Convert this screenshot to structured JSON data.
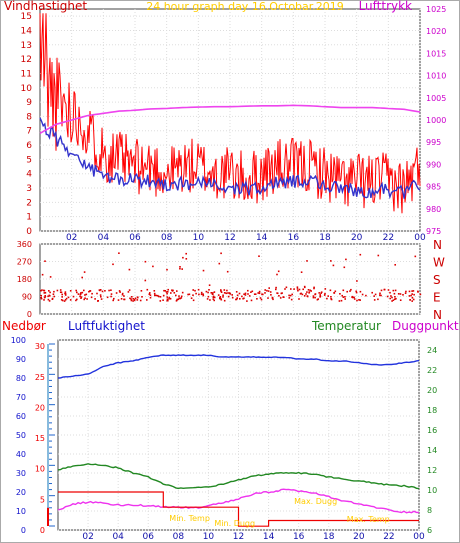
{
  "chart_data": [
    {
      "type": "line",
      "title": "24 hour graph day  16.Octobar.2019",
      "y_left_label": "Vindhastighet",
      "y_right_label": "Lufttrykk",
      "y_left_ticks": [
        "0",
        "1",
        "2",
        "3",
        "4",
        "5",
        "6",
        "7",
        "8",
        "9",
        "10",
        "11",
        "12",
        "13",
        "14",
        "15"
      ],
      "y_right_ticks": [
        "975",
        "980",
        "985",
        "990",
        "995",
        "1000",
        "1005",
        "1010",
        "1015",
        "1020",
        "1025"
      ],
      "x_ticks": [
        "02",
        "04",
        "06",
        "08",
        "10",
        "12",
        "14",
        "16",
        "18",
        "20",
        "22",
        "00"
      ],
      "ylim_left": [
        0,
        15.5
      ],
      "ylim_right": [
        975,
        1025
      ],
      "grid": true,
      "colors": {
        "wind": "#ff0000",
        "avg_wind": "#3333cc",
        "pressure": "#ee44ee",
        "axis_left": "#cc0000",
        "axis_right": "#cc00cc",
        "title": "#ffcc00"
      },
      "series": [
        {
          "name": "Vindhastighet",
          "x": [
            0,
            1,
            2,
            3,
            4,
            5,
            6,
            7,
            8,
            9,
            10,
            11,
            12,
            13,
            14,
            15,
            16,
            17,
            18,
            19,
            20,
            21,
            22,
            23,
            24
          ],
          "values": [
            11.5,
            9.0,
            8.5,
            7.0,
            5.5,
            5.0,
            4.5,
            4.5,
            4.0,
            4.5,
            4.5,
            4.0,
            4.0,
            3.5,
            4.0,
            4.5,
            4.5,
            4.5,
            4.0,
            3.5,
            3.5,
            3.5,
            3.5,
            3.0,
            4.5
          ]
        },
        {
          "name": "",
          "x": [
            0,
            1,
            2,
            3,
            4,
            5,
            6,
            7,
            8,
            9,
            10,
            11,
            12,
            13,
            14,
            15,
            16,
            17,
            18,
            19,
            20,
            21,
            22,
            23,
            24
          ],
          "values": [
            7.5,
            6.5,
            5.5,
            4.5,
            3.8,
            3.6,
            3.5,
            3.5,
            3.3,
            3.3,
            3.3,
            3.2,
            3.0,
            2.9,
            3.0,
            3.4,
            3.5,
            3.6,
            3.2,
            2.9,
            2.8,
            2.8,
            2.9,
            2.6,
            3.3
          ]
        },
        {
          "name": "Lufttrykk",
          "axis": "right",
          "x": [
            0,
            1,
            2,
            3,
            4,
            5,
            6,
            7,
            8,
            9,
            10,
            11,
            12,
            13,
            14,
            15,
            16,
            17,
            18,
            19,
            20,
            21,
            22,
            23,
            24
          ],
          "values": [
            997,
            999,
            1000,
            1001,
            1001.5,
            1002,
            1002.2,
            1002.5,
            1002.6,
            1002.8,
            1002.9,
            1003,
            1003,
            1003.1,
            1003.2,
            1003.2,
            1003.3,
            1003.2,
            1003,
            1002.8,
            1002.8,
            1002.8,
            1002.6,
            1002.4,
            1001.8
          ]
        }
      ]
    },
    {
      "type": "scatter",
      "name": "wind-direction",
      "y_left_ticks": [
        "0",
        "90",
        "180",
        "270",
        "360"
      ],
      "y_right_labels": [
        "N",
        "W",
        "S",
        "E",
        "N"
      ],
      "x_ticks": [
        "02",
        "04",
        "06",
        "08",
        "10",
        "12",
        "14",
        "16",
        "18",
        "20",
        "22",
        "00"
      ],
      "ylim": [
        0,
        360
      ],
      "colors": {
        "points": "#dd0000",
        "axis_left": "#cc0000"
      }
    },
    {
      "type": "line",
      "y_left_label": "Nedbør",
      "y_left2_label": "Luftfuktighet",
      "y_right_label": "Temperatur",
      "y_right2_label": "Duggpunkt",
      "y_left_ticks": [
        "0",
        "10",
        "20",
        "30",
        "40",
        "50",
        "60",
        "70",
        "80",
        "90",
        "100"
      ],
      "y_left2_ticks": [
        "0",
        "5",
        "10",
        "15",
        "20",
        "25",
        "30"
      ],
      "y_right_ticks": [
        "6",
        "8",
        "10",
        "12",
        "14",
        "16",
        "18",
        "20",
        "22",
        "24"
      ],
      "x_ticks": [
        "02",
        "04",
        "06",
        "08",
        "10",
        "12",
        "14",
        "16",
        "18",
        "20",
        "22",
        "00"
      ],
      "ylim_left": [
        0,
        100
      ],
      "ylim_right": [
        6,
        25
      ],
      "grid": true,
      "annotations": [
        {
          "text": "Min. Temp",
          "x": 7.4,
          "y": 6.9
        },
        {
          "text": "Min. Dugg",
          "x": 10.4,
          "y": 6.4
        },
        {
          "text": "Max. Dugg",
          "x": 15.7,
          "y": 8.6
        },
        {
          "text": "Max. Temp",
          "x": 19.2,
          "y": 6.8
        }
      ],
      "colors": {
        "humidity": "#2233dd",
        "temperature": "#228822",
        "dewpoint": "#ee33ee",
        "rain": "#ee0000",
        "annotation": "#ffcc00"
      },
      "series": [
        {
          "name": "Luftfuktighet",
          "x": [
            0,
            1,
            2,
            3,
            4,
            5,
            6,
            7,
            8,
            9,
            10,
            11,
            12,
            13,
            14,
            15,
            16,
            17,
            18,
            19,
            20,
            21,
            22,
            23,
            24
          ],
          "values": [
            80,
            81,
            82,
            86,
            88,
            89,
            91,
            92,
            92,
            92,
            92,
            91,
            91,
            91,
            91,
            91,
            90,
            90,
            89,
            89,
            88,
            87,
            87,
            88,
            89
          ]
        },
        {
          "name": "Temperatur",
          "axis": "right",
          "x": [
            0,
            1,
            2,
            3,
            4,
            5,
            6,
            7,
            8,
            9,
            10,
            11,
            12,
            13,
            14,
            15,
            16,
            17,
            18,
            19,
            20,
            21,
            22,
            23,
            24
          ],
          "values": [
            12.0,
            12.4,
            12.6,
            12.5,
            12.2,
            11.7,
            11.3,
            10.6,
            10.2,
            10.2,
            10.3,
            10.6,
            11.0,
            11.4,
            11.6,
            11.7,
            11.7,
            11.6,
            11.3,
            11.1,
            10.9,
            10.7,
            10.5,
            10.4,
            10.2
          ]
        },
        {
          "name": "Duggpunkt",
          "axis": "right",
          "x": [
            0,
            1,
            2,
            3,
            4,
            5,
            6,
            7,
            8,
            9,
            10,
            11,
            12,
            13,
            14,
            15,
            16,
            17,
            18,
            19,
            20,
            21,
            22,
            23,
            24
          ],
          "values": [
            8.0,
            8.6,
            8.8,
            8.7,
            8.5,
            8.5,
            8.4,
            8.3,
            8.3,
            8.2,
            8.4,
            8.7,
            9.1,
            9.6,
            9.8,
            10.0,
            9.9,
            9.7,
            9.3,
            8.9,
            8.6,
            8.3,
            8.0,
            7.8,
            7.8
          ]
        },
        {
          "name": "Nedbør",
          "x": [
            0,
            7,
            7,
            12,
            12,
            14,
            14,
            24
          ],
          "values": [
            20,
            20,
            12,
            12,
            2,
            2,
            5,
            5
          ]
        }
      ]
    }
  ]
}
